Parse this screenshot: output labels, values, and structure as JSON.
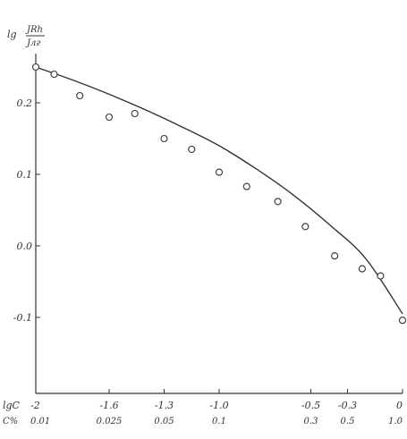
{
  "chart_data": {
    "type": "scatter",
    "ylabel_main": "lg",
    "ylabel_num": "JRh",
    "ylabel_den": "Jлг",
    "x_axis_name": "lgC",
    "x2_axis_name": "C%",
    "xlim": [
      -2.0,
      0.0
    ],
    "ylim": [
      -0.15,
      0.27
    ],
    "y_ticks": [
      0.2,
      0.1,
      0.0,
      -0.1
    ],
    "y_tick_labels": [
      "0.2",
      "0.1",
      "0.0",
      "-0.1"
    ],
    "x_ticks": [
      -2.0,
      -1.6,
      -1.3,
      -1.0,
      -0.5,
      -0.3,
      0.0
    ],
    "x_tick_labels": [
      "-2",
      "-1.6",
      "-1.3",
      "-1.0",
      "-0.5",
      "-0.3",
      "0"
    ],
    "x2_tick_labels": [
      "0.01",
      "0.025",
      "0.05",
      "0.1",
      "0.3",
      "0.5",
      "1.0"
    ],
    "points": [
      {
        "x": -2.0,
        "y": 0.25
      },
      {
        "x": -1.9,
        "y": 0.24
      },
      {
        "x": -1.76,
        "y": 0.21
      },
      {
        "x": -1.6,
        "y": 0.18
      },
      {
        "x": -1.46,
        "y": 0.185
      },
      {
        "x": -1.3,
        "y": 0.15
      },
      {
        "x": -1.15,
        "y": 0.135
      },
      {
        "x": -1.0,
        "y": 0.103
      },
      {
        "x": -0.85,
        "y": 0.083
      },
      {
        "x": -0.68,
        "y": 0.062
      },
      {
        "x": -0.53,
        "y": 0.027
      },
      {
        "x": -0.37,
        "y": -0.014
      },
      {
        "x": -0.22,
        "y": -0.032
      },
      {
        "x": -0.12,
        "y": -0.042
      },
      {
        "x": 0.0,
        "y": -0.104
      }
    ],
    "curve": {
      "x": [
        -2.0,
        -1.8,
        -1.6,
        -1.4,
        -1.2,
        -1.0,
        -0.8,
        -0.6,
        -0.4,
        -0.2,
        0.0
      ],
      "y": [
        0.25,
        0.232,
        0.212,
        0.19,
        0.166,
        0.14,
        0.108,
        0.072,
        0.03,
        -0.018,
        -0.095
      ]
    }
  }
}
